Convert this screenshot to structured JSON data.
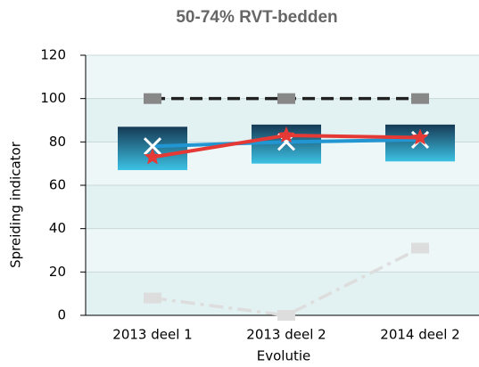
{
  "chart_data": {
    "type": "line",
    "title": "50-74% RVT-bedden",
    "xlabel": "Evolutie",
    "ylabel": "Spreiding indicator",
    "categories": [
      "2013 deel 1",
      "2013 deel 2",
      "2014 deel 2"
    ],
    "ylim": [
      0,
      120
    ],
    "yticks": [
      0,
      20,
      40,
      60,
      80,
      100,
      120
    ],
    "grid": true,
    "boxes": {
      "low": [
        67,
        70,
        71
      ],
      "high": [
        87,
        88,
        88
      ]
    },
    "series": [
      {
        "color": "#888888",
        "values": [
          100,
          100,
          100
        ],
        "dash": "dashed",
        "marker": "square",
        "line_color": "#222222"
      },
      {
        "color": "#dddddd",
        "values": [
          8,
          0,
          31
        ],
        "dash": "dashdot",
        "marker": "square",
        "line_color": "#dddddd"
      },
      {
        "color": "#ffffff",
        "values": [
          78,
          80,
          81
        ],
        "dash": "solid",
        "marker": "x",
        "line_color": "#2196d3"
      },
      {
        "color": "#e53935",
        "values": [
          73,
          83,
          82
        ],
        "dash": "solid",
        "marker": "star",
        "line_color": "#e53935"
      }
    ]
  }
}
